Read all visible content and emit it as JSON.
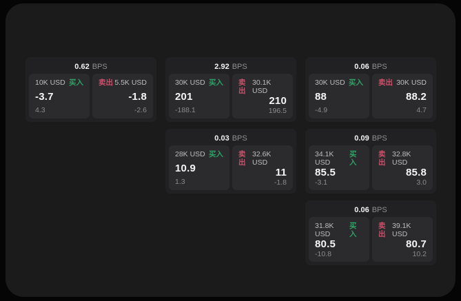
{
  "colors": {
    "buy": "#2ea167",
    "sell": "#c9506b",
    "panel_bg": "#1b1b1c",
    "card_bg": "#212123",
    "subpanel_bg": "#2b2b2d",
    "value_text": "#f5f5f5",
    "muted_text": "#8b8b8b"
  },
  "labels": {
    "bps_unit": "BPS",
    "buy": "买入",
    "sell": "卖出"
  },
  "cards": [
    {
      "row": 1,
      "col": 1,
      "bps": "0.62",
      "buy": {
        "amount": "10K USD",
        "price": "-3.7",
        "delta": "4.3"
      },
      "sell": {
        "amount": "5.5K USD",
        "price": "-1.8",
        "delta": "-2.6"
      }
    },
    {
      "row": 1,
      "col": 2,
      "bps": "2.92",
      "buy": {
        "amount": "30K USD",
        "price": "201",
        "delta": "-188.1"
      },
      "sell": {
        "amount": "30.1K USD",
        "price": "210",
        "delta": "196.5"
      }
    },
    {
      "row": 1,
      "col": 3,
      "bps": "0.06",
      "buy": {
        "amount": "30K USD",
        "price": "88",
        "delta": "-4.9"
      },
      "sell": {
        "amount": "30K USD",
        "price": "88.2",
        "delta": "4.7"
      }
    },
    {
      "row": 2,
      "col": 2,
      "bps": "0.03",
      "buy": {
        "amount": "28K USD",
        "price": "10.9",
        "delta": "1.3"
      },
      "sell": {
        "amount": "32.6K USD",
        "price": "11",
        "delta": "-1.8"
      }
    },
    {
      "row": 2,
      "col": 3,
      "bps": "0.09",
      "buy": {
        "amount": "34.1K USD",
        "price": "85.5",
        "delta": "-3.1"
      },
      "sell": {
        "amount": "32.8K USD",
        "price": "85.8",
        "delta": "3.0"
      }
    },
    {
      "row": 3,
      "col": 3,
      "bps": "0.06",
      "buy": {
        "amount": "31.8K USD",
        "price": "80.5",
        "delta": "-10.8"
      },
      "sell": {
        "amount": "39.1K USD",
        "price": "80.7",
        "delta": "10.2"
      }
    }
  ]
}
